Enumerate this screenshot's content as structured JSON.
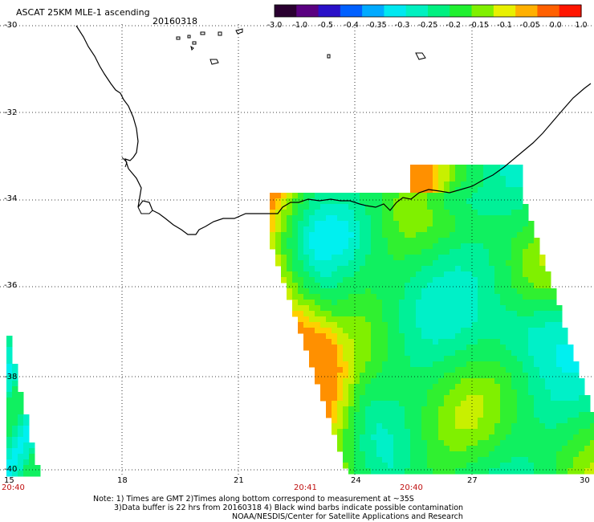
{
  "header": {
    "title": "ASCAT 25KM MLE-1 ascending",
    "date": "20160318"
  },
  "colorbar": {
    "labels": [
      "-3.0",
      "-1.0",
      "-0.5",
      "-0.4",
      "-0.35",
      "-0.3",
      "-0.25",
      "-0.2",
      "-0.15",
      "-0.1",
      "-0.05",
      "0.0",
      "1.0"
    ],
    "colors": [
      "#2a0030",
      "#5a0080",
      "#2a10c8",
      "#0060ff",
      "#00aaff",
      "#00e8f0",
      "#00f0c0",
      "#00f080",
      "#20f030",
      "#80f000",
      "#e8f000",
      "#ffb000",
      "#ff6000",
      "#ff1500"
    ]
  },
  "axes": {
    "lat_labels": [
      "-30",
      "-32",
      "-34",
      "-36",
      "-38",
      "-40"
    ],
    "lon_labels": [
      "15",
      "18",
      "21",
      "24",
      "27",
      "30"
    ],
    "pass_times": [
      "20:40",
      "20:41",
      "20:40"
    ]
  },
  "legend_colors": {
    "coast": "#000000",
    "grid": "#000000",
    "time_label": "#c01010"
  },
  "footer": {
    "line1": "Note: 1) Times are GMT 2)Times along bottom correspond to measurement at ~35S",
    "line2": "3)Data buffer is 22 hrs from 20160318 4) Black wind barbs indicate possible contamination",
    "line3": "NOAA/NESDIS/Center for Satellite Applications and Research"
  }
}
